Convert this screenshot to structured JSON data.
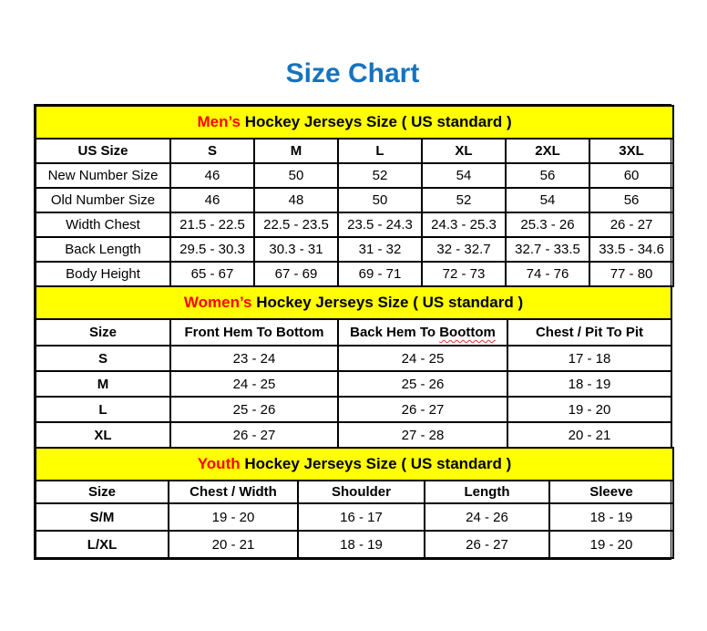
{
  "page": {
    "title": "Size Chart"
  },
  "colors": {
    "title_blue": "#1673BE",
    "band_yellow": "#FFFF00",
    "accent_red": "#FF0000",
    "squiggle_red": "#E03131",
    "border_black": "#000000"
  },
  "mens": {
    "band_highlight": "Men’s",
    "band_rest": " Hockey Jerseys Size ( US standard )",
    "headers": [
      "US Size",
      "S",
      "M",
      "L",
      "XL",
      "2XL",
      "3XL"
    ],
    "rows": [
      {
        "label": "New Number Size",
        "values": [
          "46",
          "50",
          "52",
          "54",
          "56",
          "60"
        ]
      },
      {
        "label": "Old Number Size",
        "values": [
          "46",
          "48",
          "50",
          "52",
          "54",
          "56"
        ]
      },
      {
        "label": "Width Chest",
        "values": [
          "21.5 - 22.5",
          "22.5 - 23.5",
          "23.5 - 24.3",
          "24.3 - 25.3",
          "25.3 - 26",
          "26 - 27"
        ]
      },
      {
        "label": "Back Length",
        "values": [
          "29.5 - 30.3",
          "30.3 - 31",
          "31 - 32",
          "32 - 32.7",
          "32.7 - 33.5",
          "33.5 - 34.6"
        ]
      },
      {
        "label": "Body Height",
        "values": [
          "65 - 67",
          "67 - 69",
          "69 - 71",
          "72 - 73",
          "74 - 76",
          "77 - 80"
        ]
      }
    ]
  },
  "womens": {
    "band_highlight": "Women’s",
    "band_rest": " Hockey Jerseys Size ( US standard )",
    "headers": {
      "col0": "Size",
      "col1": "Front Hem To Bottom",
      "col2_prefix": "Back Hem To ",
      "col2_misspelled": "Boottom",
      "col3": "Chest / Pit To Pit"
    },
    "rows": [
      {
        "label": "S",
        "values": [
          "23 - 24",
          "24 - 25",
          "17 - 18"
        ]
      },
      {
        "label": "M",
        "values": [
          "24 - 25",
          "25 - 26",
          "18 - 19"
        ]
      },
      {
        "label": "L",
        "values": [
          "25 - 26",
          "26 - 27",
          "19 - 20"
        ]
      },
      {
        "label": "XL",
        "values": [
          "26 - 27",
          "27 - 28",
          "20 - 21"
        ]
      }
    ]
  },
  "youth": {
    "band_highlight": "Youth",
    "band_rest": " Hockey Jerseys Size ( US standard )",
    "headers": [
      "Size",
      "Chest / Width",
      "Shoulder",
      "Length",
      "Sleeve"
    ],
    "rows": [
      {
        "label": "S/M",
        "values": [
          "19 - 20",
          "16 - 17",
          "24 - 26",
          "18 - 19"
        ]
      },
      {
        "label": "L/XL",
        "values": [
          "20 - 21",
          "18 - 19",
          "26 - 27",
          "19 - 20"
        ]
      }
    ]
  }
}
